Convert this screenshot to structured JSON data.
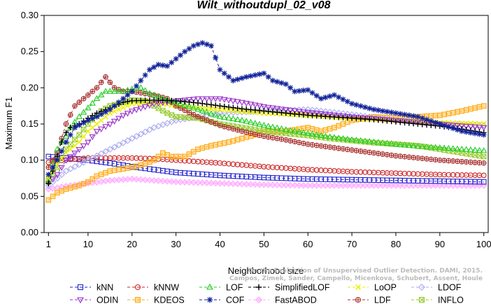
{
  "chart_data": {
    "type": "line",
    "title": "Wilt_withoutdupl_02_v08",
    "xlabel": "Neighborhood size",
    "ylabel": "Maximum F1",
    "xlim": [
      0,
      101
    ],
    "ylim": [
      0,
      0.3
    ],
    "xticks": [
      1,
      10,
      20,
      30,
      40,
      50,
      60,
      70,
      80,
      90,
      100
    ],
    "yticks": [
      0.0,
      0.05,
      0.1,
      0.15,
      0.2,
      0.25,
      0.3
    ],
    "ytick_labels": [
      "0.00",
      "0.05",
      "0.10",
      "0.15",
      "0.20",
      "0.25",
      "0.30"
    ],
    "watermark": "Campos, Zimek, Sander, Campello, Micenkova, Schubert, Assent, Houle",
    "watermark2": "On the Evaluation of Unsupervised Outlier Detection. DAMI, 2015.",
    "legend_position": "bottom",
    "series": [
      {
        "name": "kNN",
        "color": "#2222cc",
        "marker": "square",
        "dash": "4,3",
        "anchors": [
          [
            1,
            0.105
          ],
          [
            3,
            0.104
          ],
          [
            5,
            0.103
          ],
          [
            10,
            0.1
          ],
          [
            15,
            0.096
          ],
          [
            20,
            0.091
          ],
          [
            25,
            0.087
          ],
          [
            30,
            0.083
          ],
          [
            40,
            0.079
          ],
          [
            50,
            0.076
          ],
          [
            60,
            0.074
          ],
          [
            70,
            0.073
          ],
          [
            80,
            0.072
          ],
          [
            90,
            0.071
          ],
          [
            100,
            0.07
          ]
        ]
      },
      {
        "name": "kNNW",
        "color": "#cc2222",
        "marker": "circle",
        "dash": "4,3",
        "anchors": [
          [
            1,
            0.097
          ],
          [
            3,
            0.099
          ],
          [
            6,
            0.101
          ],
          [
            10,
            0.103
          ],
          [
            15,
            0.103
          ],
          [
            20,
            0.103
          ],
          [
            25,
            0.102
          ],
          [
            30,
            0.1
          ],
          [
            40,
            0.096
          ],
          [
            50,
            0.091
          ],
          [
            60,
            0.087
          ],
          [
            70,
            0.084
          ],
          [
            80,
            0.082
          ],
          [
            90,
            0.08
          ],
          [
            100,
            0.079
          ]
        ]
      },
      {
        "name": "LOF",
        "color": "#22cc22",
        "marker": "triangle",
        "dash": "4,3",
        "anchors": [
          [
            1,
            0.07
          ],
          [
            2,
            0.095
          ],
          [
            3,
            0.115
          ],
          [
            4,
            0.125
          ],
          [
            5,
            0.133
          ],
          [
            6,
            0.145
          ],
          [
            8,
            0.16
          ],
          [
            10,
            0.172
          ],
          [
            12,
            0.185
          ],
          [
            14,
            0.195
          ],
          [
            16,
            0.195
          ],
          [
            18,
            0.195
          ],
          [
            20,
            0.198
          ],
          [
            22,
            0.2
          ],
          [
            24,
            0.192
          ],
          [
            27,
            0.185
          ],
          [
            30,
            0.18
          ],
          [
            35,
            0.17
          ],
          [
            40,
            0.16
          ],
          [
            45,
            0.155
          ],
          [
            50,
            0.148
          ],
          [
            55,
            0.142
          ],
          [
            60,
            0.137
          ],
          [
            65,
            0.132
          ],
          [
            70,
            0.128
          ],
          [
            75,
            0.125
          ],
          [
            80,
            0.122
          ],
          [
            85,
            0.119
          ],
          [
            90,
            0.117
          ],
          [
            95,
            0.115
          ],
          [
            100,
            0.113
          ]
        ]
      },
      {
        "name": "SimplifiedLOF",
        "color": "#000000",
        "marker": "plus",
        "dash": "4,3",
        "anchors": [
          [
            1,
            0.068
          ],
          [
            2,
            0.085
          ],
          [
            3,
            0.105
          ],
          [
            4,
            0.125
          ],
          [
            5,
            0.138
          ],
          [
            6,
            0.145
          ],
          [
            8,
            0.15
          ],
          [
            10,
            0.158
          ],
          [
            12,
            0.165
          ],
          [
            15,
            0.172
          ],
          [
            18,
            0.18
          ],
          [
            20,
            0.182
          ],
          [
            25,
            0.183
          ],
          [
            30,
            0.182
          ],
          [
            35,
            0.179
          ],
          [
            40,
            0.175
          ],
          [
            45,
            0.171
          ],
          [
            50,
            0.168
          ],
          [
            55,
            0.165
          ],
          [
            60,
            0.162
          ],
          [
            65,
            0.16
          ],
          [
            70,
            0.158
          ],
          [
            75,
            0.156
          ],
          [
            80,
            0.153
          ],
          [
            85,
            0.15
          ],
          [
            90,
            0.147
          ],
          [
            95,
            0.143
          ],
          [
            100,
            0.138
          ]
        ]
      },
      {
        "name": "LoOP",
        "color": "#eeee00",
        "marker": "x",
        "dash": "4,3",
        "anchors": [
          [
            1,
            0.075
          ],
          [
            3,
            0.095
          ],
          [
            5,
            0.11
          ],
          [
            8,
            0.125
          ],
          [
            10,
            0.14
          ],
          [
            15,
            0.165
          ],
          [
            20,
            0.178
          ],
          [
            25,
            0.18
          ],
          [
            30,
            0.175
          ],
          [
            35,
            0.172
          ],
          [
            40,
            0.17
          ],
          [
            50,
            0.165
          ],
          [
            60,
            0.162
          ],
          [
            70,
            0.158
          ],
          [
            80,
            0.155
          ],
          [
            90,
            0.152
          ],
          [
            100,
            0.15
          ]
        ]
      },
      {
        "name": "LDOF",
        "color": "#aaaaee",
        "marker": "diamond",
        "dash": "4,3",
        "anchors": [
          [
            1,
            0.065
          ],
          [
            5,
            0.085
          ],
          [
            10,
            0.1
          ],
          [
            15,
            0.115
          ],
          [
            20,
            0.13
          ],
          [
            25,
            0.145
          ],
          [
            30,
            0.155
          ],
          [
            35,
            0.16
          ],
          [
            40,
            0.165
          ],
          [
            50,
            0.168
          ],
          [
            60,
            0.17
          ],
          [
            70,
            0.163
          ],
          [
            80,
            0.155
          ],
          [
            90,
            0.15
          ],
          [
            100,
            0.148
          ]
        ]
      },
      {
        "name": "ODIN",
        "color": "#9933cc",
        "marker": "triangle-down",
        "dash": "4,3",
        "anchors": [
          [
            1,
            0.068
          ],
          [
            3,
            0.08
          ],
          [
            5,
            0.1
          ],
          [
            8,
            0.115
          ],
          [
            10,
            0.125
          ],
          [
            12,
            0.14
          ],
          [
            15,
            0.15
          ],
          [
            18,
            0.162
          ],
          [
            20,
            0.168
          ],
          [
            25,
            0.178
          ],
          [
            30,
            0.182
          ],
          [
            35,
            0.185
          ],
          [
            40,
            0.185
          ],
          [
            45,
            0.18
          ],
          [
            50,
            0.174
          ],
          [
            55,
            0.17
          ],
          [
            60,
            0.166
          ],
          [
            70,
            0.16
          ],
          [
            80,
            0.155
          ],
          [
            90,
            0.15
          ],
          [
            100,
            0.145
          ]
        ]
      },
      {
        "name": "KDEOS",
        "color": "#ffaa11",
        "marker": "square-fill",
        "dash": "4,3",
        "anchors": [
          [
            1,
            0.045
          ],
          [
            3,
            0.055
          ],
          [
            5,
            0.06
          ],
          [
            8,
            0.065
          ],
          [
            10,
            0.07
          ],
          [
            12,
            0.078
          ],
          [
            15,
            0.085
          ],
          [
            18,
            0.088
          ],
          [
            20,
            0.09
          ],
          [
            23,
            0.095
          ],
          [
            25,
            0.1
          ],
          [
            27,
            0.11
          ],
          [
            29,
            0.105
          ],
          [
            32,
            0.105
          ],
          [
            35,
            0.115
          ],
          [
            38,
            0.12
          ],
          [
            42,
            0.125
          ],
          [
            45,
            0.13
          ],
          [
            48,
            0.135
          ],
          [
            50,
            0.14
          ],
          [
            55,
            0.14
          ],
          [
            60,
            0.145
          ],
          [
            63,
            0.14
          ],
          [
            66,
            0.145
          ],
          [
            70,
            0.155
          ],
          [
            75,
            0.16
          ],
          [
            80,
            0.158
          ],
          [
            85,
            0.16
          ],
          [
            90,
            0.162
          ],
          [
            95,
            0.168
          ],
          [
            100,
            0.175
          ]
        ]
      },
      {
        "name": "COF",
        "color": "#112299",
        "marker": "star",
        "dash": "4,3",
        "anchors": [
          [
            1,
            0.08
          ],
          [
            3,
            0.1
          ],
          [
            5,
            0.125
          ],
          [
            7,
            0.145
          ],
          [
            10,
            0.155
          ],
          [
            12,
            0.16
          ],
          [
            15,
            0.17
          ],
          [
            18,
            0.185
          ],
          [
            20,
            0.195
          ],
          [
            22,
            0.21
          ],
          [
            24,
            0.225
          ],
          [
            26,
            0.232
          ],
          [
            28,
            0.23
          ],
          [
            30,
            0.24
          ],
          [
            32,
            0.25
          ],
          [
            34,
            0.258
          ],
          [
            36,
            0.262
          ],
          [
            38,
            0.258
          ],
          [
            40,
            0.225
          ],
          [
            43,
            0.21
          ],
          [
            46,
            0.215
          ],
          [
            50,
            0.22
          ],
          [
            52,
            0.21
          ],
          [
            55,
            0.205
          ],
          [
            57,
            0.195
          ],
          [
            60,
            0.197
          ],
          [
            63,
            0.185
          ],
          [
            66,
            0.19
          ],
          [
            70,
            0.178
          ],
          [
            75,
            0.17
          ],
          [
            80,
            0.165
          ],
          [
            85,
            0.16
          ],
          [
            90,
            0.15
          ],
          [
            95,
            0.14
          ],
          [
            100,
            0.135
          ]
        ]
      },
      {
        "name": "FastABOD",
        "color": "#ffaaff",
        "marker": "diamond-fill",
        "dash": "4,3",
        "anchors": [
          [
            1,
            0.06
          ],
          [
            5,
            0.064
          ],
          [
            10,
            0.068
          ],
          [
            15,
            0.072
          ],
          [
            20,
            0.074
          ],
          [
            25,
            0.072
          ],
          [
            30,
            0.07
          ],
          [
            40,
            0.068
          ],
          [
            50,
            0.066
          ],
          [
            60,
            0.065
          ],
          [
            70,
            0.065
          ],
          [
            80,
            0.065
          ],
          [
            90,
            0.065
          ],
          [
            100,
            0.065
          ]
        ]
      },
      {
        "name": "LDF",
        "color": "#aa3333",
        "marker": "circle-plus",
        "dash": "4,3",
        "anchors": [
          [
            1,
            0.09
          ],
          [
            3,
            0.11
          ],
          [
            5,
            0.15
          ],
          [
            7,
            0.175
          ],
          [
            10,
            0.19
          ],
          [
            12,
            0.2
          ],
          [
            14,
            0.215
          ],
          [
            16,
            0.2
          ],
          [
            18,
            0.195
          ],
          [
            20,
            0.195
          ],
          [
            22,
            0.193
          ],
          [
            25,
            0.19
          ],
          [
            28,
            0.185
          ],
          [
            30,
            0.175
          ],
          [
            35,
            0.16
          ],
          [
            40,
            0.148
          ],
          [
            45,
            0.14
          ],
          [
            50,
            0.133
          ],
          [
            55,
            0.128
          ],
          [
            60,
            0.122
          ],
          [
            65,
            0.118
          ],
          [
            70,
            0.114
          ],
          [
            75,
            0.11
          ],
          [
            80,
            0.106
          ],
          [
            85,
            0.103
          ],
          [
            90,
            0.1
          ],
          [
            95,
            0.098
          ],
          [
            100,
            0.096
          ]
        ]
      },
      {
        "name": "INFLO",
        "color": "#99cc33",
        "marker": "square-x",
        "dash": "4,3",
        "anchors": [
          [
            1,
            0.072
          ],
          [
            3,
            0.09
          ],
          [
            5,
            0.115
          ],
          [
            8,
            0.135
          ],
          [
            10,
            0.15
          ],
          [
            13,
            0.168
          ],
          [
            15,
            0.175
          ],
          [
            18,
            0.18
          ],
          [
            20,
            0.183
          ],
          [
            23,
            0.182
          ],
          [
            25,
            0.175
          ],
          [
            28,
            0.165
          ],
          [
            30,
            0.16
          ],
          [
            35,
            0.158
          ],
          [
            40,
            0.15
          ],
          [
            45,
            0.145
          ],
          [
            50,
            0.14
          ],
          [
            55,
            0.137
          ],
          [
            60,
            0.134
          ],
          [
            65,
            0.13
          ],
          [
            70,
            0.127
          ],
          [
            75,
            0.124
          ],
          [
            80,
            0.122
          ],
          [
            85,
            0.12
          ],
          [
            90,
            0.115
          ],
          [
            95,
            0.11
          ],
          [
            100,
            0.105
          ]
        ]
      }
    ]
  }
}
